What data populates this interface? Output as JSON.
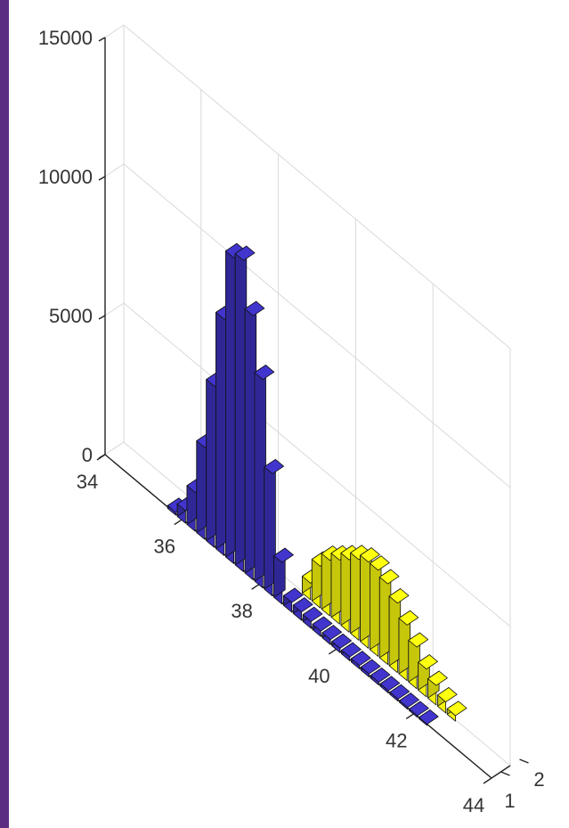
{
  "chart_data": {
    "type": "bar3d",
    "title": "",
    "xlabel": "",
    "ylabel": "",
    "zlabel": "",
    "x_ticks": [
      "34",
      "36",
      "38",
      "40",
      "42",
      "44"
    ],
    "y_ticks": [
      "1",
      "2"
    ],
    "z_ticks": [
      "0",
      "5000",
      "10000",
      "15000"
    ],
    "x_range": [
      34,
      44
    ],
    "z_range": [
      0,
      15000
    ],
    "grid": true,
    "bin_width": 0.25,
    "series": [
      {
        "color": "#3a2fb8",
        "row": 1,
        "x": [
          35.75,
          36.0,
          36.25,
          36.5,
          36.75,
          37.0,
          37.25,
          37.5,
          37.75,
          38.0,
          38.25,
          38.5,
          38.75,
          39.0,
          39.25,
          39.5,
          39.75,
          40.0,
          40.25,
          40.5,
          40.75,
          41.0,
          41.25,
          41.5,
          41.75,
          42.0,
          42.25
        ],
        "values": [
          100,
          450,
          1400,
          3300,
          5800,
          8500,
          11000,
          11200,
          9500,
          7500,
          4400,
          1500,
          350,
          300,
          250,
          200,
          180,
          160,
          140,
          120,
          110,
          100,
          90,
          80,
          70,
          60,
          50
        ]
      },
      {
        "color": "#f2f20e",
        "row": 2,
        "x": [
          38.75,
          39.0,
          39.25,
          39.5,
          39.75,
          40.0,
          40.25,
          40.5,
          40.75,
          41.0,
          41.25,
          41.5,
          41.75,
          42.0,
          42.25,
          42.5
        ],
        "values": [
          600,
          1500,
          2000,
          2300,
          2600,
          2900,
          3100,
          3100,
          2900,
          2500,
          2000,
          1500,
          1000,
          700,
          400,
          200
        ]
      }
    ]
  }
}
